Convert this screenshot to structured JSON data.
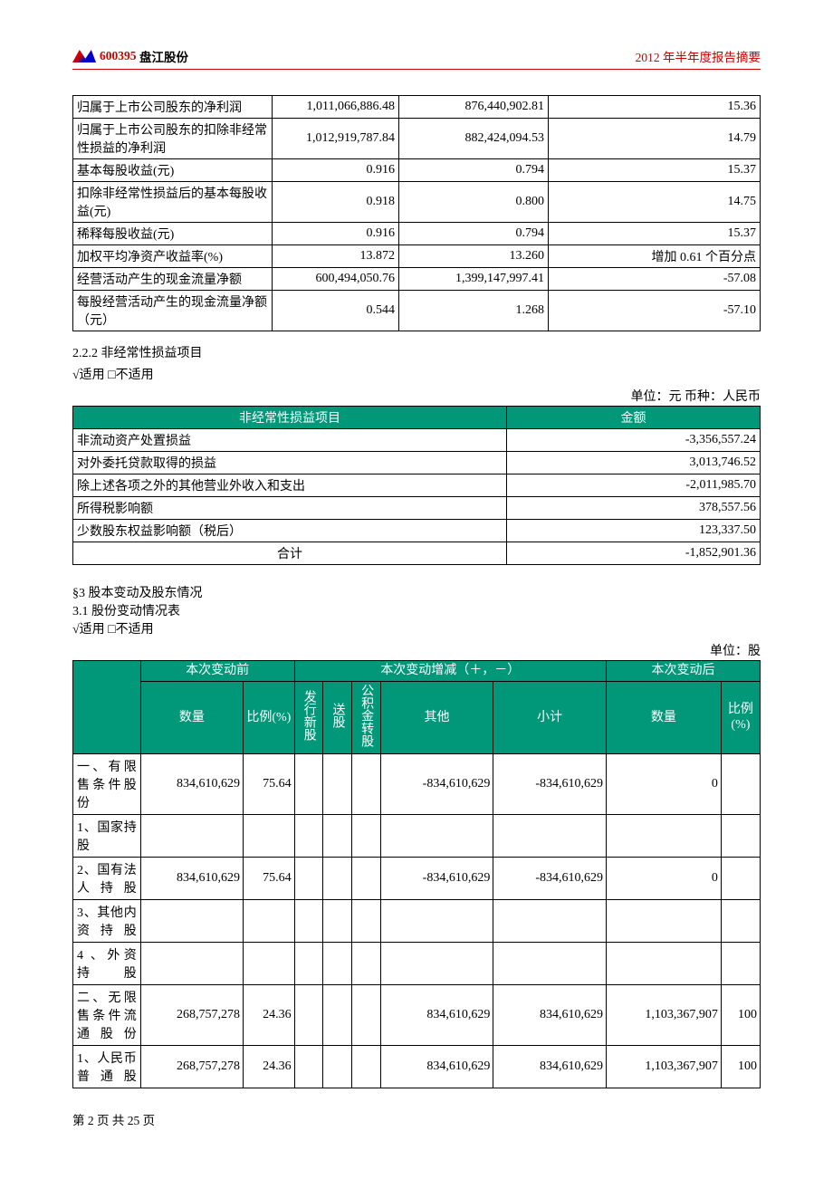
{
  "header": {
    "stock_code": "600395",
    "stock_name": "盘江股份",
    "report_title": "2012 年半年度报告摘要"
  },
  "table1": {
    "rows": [
      {
        "label": "归属于上市公司股东的净利润",
        "c2": "1,011,066,886.48",
        "c3": "876,440,902.81",
        "c4": "15.36"
      },
      {
        "label": "归属于上市公司股东的扣除非经常性损益的净利润",
        "c2": "1,012,919,787.84",
        "c3": "882,424,094.53",
        "c4": "14.79"
      },
      {
        "label": "基本每股收益(元)",
        "c2": "0.916",
        "c3": "0.794",
        "c4": "15.37"
      },
      {
        "label": "扣除非经常性损益后的基本每股收益(元)",
        "c2": "0.918",
        "c3": "0.800",
        "c4": "14.75"
      },
      {
        "label": "稀释每股收益(元)",
        "c2": "0.916",
        "c3": "0.794",
        "c4": "15.37"
      },
      {
        "label": "加权平均净资产收益率(%)",
        "c2": "13.872",
        "c3": "13.260",
        "c4": "增加 0.61 个百分点"
      },
      {
        "label": "经营活动产生的现金流量净额",
        "c2": "600,494,050.76",
        "c3": "1,399,147,997.41",
        "c4": "-57.08"
      },
      {
        "label": "每股经营活动产生的现金流量净额（元）",
        "c2": "0.544",
        "c3": "1.268",
        "c4": "-57.10"
      }
    ]
  },
  "section222": {
    "title": "2.2.2 非经常性损益项目",
    "apply": "√适用 □不适用",
    "unit": "单位：元 币种：人民币"
  },
  "table2": {
    "header": {
      "col1": "非经常性损益项目",
      "col2": "金额"
    },
    "rows": [
      {
        "label": "非流动资产处置损益",
        "amount": "-3,356,557.24"
      },
      {
        "label": "对外委托贷款取得的损益",
        "amount": "3,013,746.52"
      },
      {
        "label": "除上述各项之外的其他营业外收入和支出",
        "amount": "-2,011,985.70"
      },
      {
        "label": "所得税影响额",
        "amount": "378,557.56"
      },
      {
        "label": "少数股东权益影响额（税后）",
        "amount": "123,337.50"
      }
    ],
    "total": {
      "label": "合计",
      "amount": "-1,852,901.36"
    }
  },
  "section3": {
    "title": "§3 股本变动及股东情况",
    "subtitle": "3.1 股份变动情况表",
    "apply": "√适用 □不适用",
    "unit": "单位：股"
  },
  "table3": {
    "header": {
      "before": "本次变动前",
      "change": "本次变动增减（＋，－）",
      "after": "本次变动后",
      "qty": "数量",
      "pct": "比例(%)",
      "issue": "发行新股",
      "bonus": "送股",
      "fund": "公积金转股",
      "other": "其他",
      "subtotal": "小计",
      "qty2": "数量",
      "pct2": "比例(%)"
    },
    "rows": [
      {
        "label": "一、有限售条件股份",
        "qty": "834,610,629",
        "pct": "75.64",
        "issue": "",
        "bonus": "",
        "fund": "",
        "other": "-834,610,629",
        "subtotal": "-834,610,629",
        "qty2": "0",
        "pct2": ""
      },
      {
        "label": "1、国家持股",
        "qty": "",
        "pct": "",
        "issue": "",
        "bonus": "",
        "fund": "",
        "other": "",
        "subtotal": "",
        "qty2": "",
        "pct2": ""
      },
      {
        "label": "2、国有法人持股",
        "qty": "834,610,629",
        "pct": "75.64",
        "issue": "",
        "bonus": "",
        "fund": "",
        "other": "-834,610,629",
        "subtotal": "-834,610,629",
        "qty2": "0",
        "pct2": ""
      },
      {
        "label": "3、其他内资持股",
        "qty": "",
        "pct": "",
        "issue": "",
        "bonus": "",
        "fund": "",
        "other": "",
        "subtotal": "",
        "qty2": "",
        "pct2": ""
      },
      {
        "label": "4 、外资持股",
        "qty": "",
        "pct": "",
        "issue": "",
        "bonus": "",
        "fund": "",
        "other": "",
        "subtotal": "",
        "qty2": "",
        "pct2": ""
      },
      {
        "label": "二、无限售条件流通股份",
        "qty": "268,757,278",
        "pct": "24.36",
        "issue": "",
        "bonus": "",
        "fund": "",
        "other": "834,610,629",
        "subtotal": "834,610,629",
        "qty2": "1,103,367,907",
        "pct2": "100"
      },
      {
        "label": "1、人民币普通股",
        "qty": "268,757,278",
        "pct": "24.36",
        "issue": "",
        "bonus": "",
        "fund": "",
        "other": "834,610,629",
        "subtotal": "834,610,629",
        "qty2": "1,103,367,907",
        "pct2": "100"
      }
    ]
  },
  "footer": {
    "page": "第 2 页 共 25 页"
  }
}
